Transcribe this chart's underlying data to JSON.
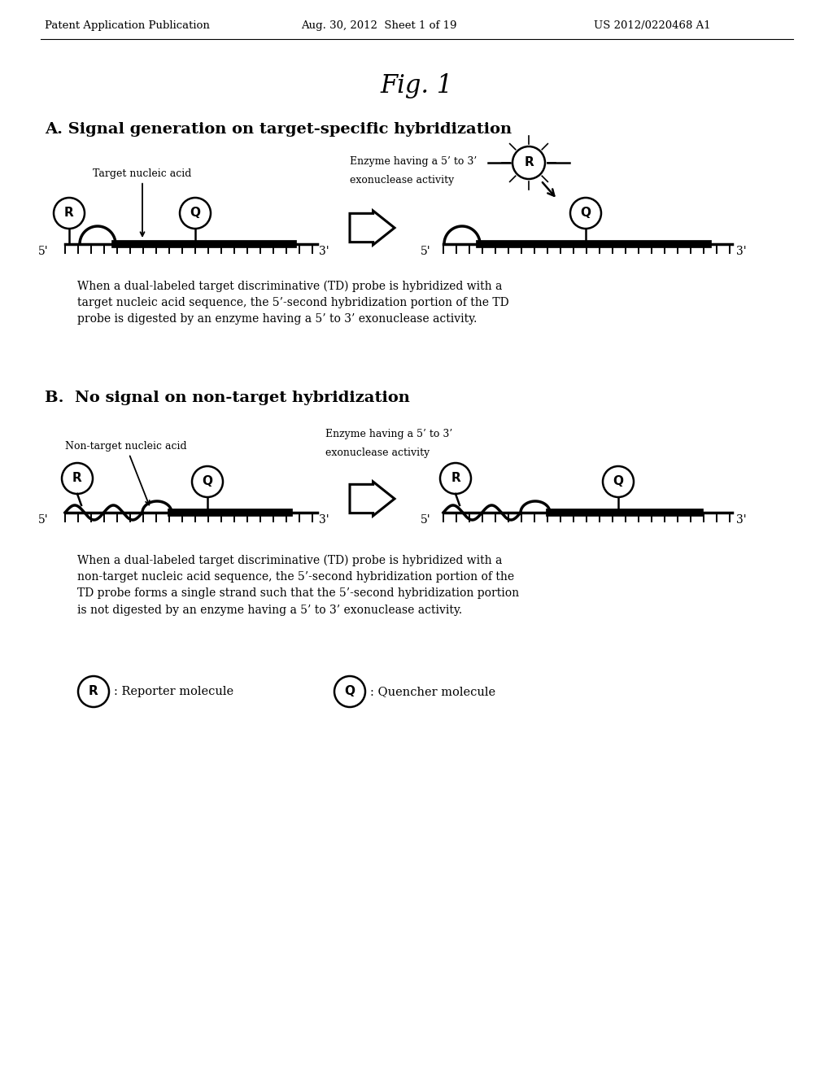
{
  "bg_color": "#ffffff",
  "header_left": "Patent Application Publication",
  "header_mid": "Aug. 30, 2012  Sheet 1 of 19",
  "header_right": "US 2012/0220468 A1",
  "fig_title": "Fig. 1",
  "section_A_title": "A. Signal generation on target-specific hybridization",
  "section_B_title": "B.  No signal on non-target hybridization",
  "caption_A": "When a dual-labeled target discriminative (TD) probe is hybridized with a\ntarget nucleic acid sequence, the 5’-second hybridization portion of the TD\nprobe is digested by an enzyme having a 5’ to 3’ exonuclease activity.",
  "caption_B": "When a dual-labeled target discriminative (TD) probe is hybridized with a\nnon-target nucleic acid sequence, the 5’-second hybridization portion of the\nTD probe forms a single strand such that the 5’-second hybridization portion\nis not digested by an enzyme having a 5’ to 3’ exonuclease activity.",
  "legend_R": ": Reporter molecule",
  "legend_Q": ": Quencher molecule"
}
